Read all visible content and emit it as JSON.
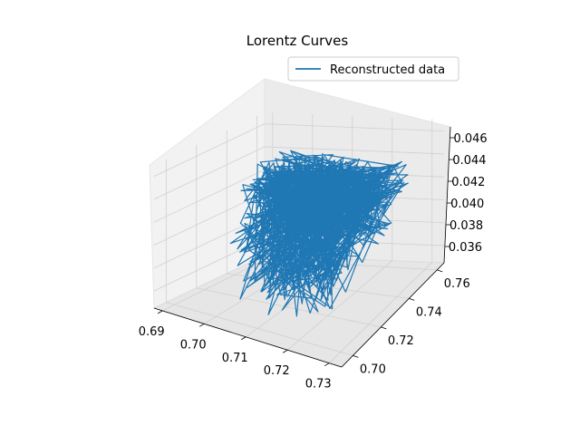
{
  "colors": {
    "line": "#1f77b4",
    "pane": "#f2f2f2",
    "grid": "#d0d0d0",
    "axis": "#000000"
  },
  "chart_data": {
    "type": "line",
    "projection": "3d",
    "title": "Lorentz Curves",
    "legend": {
      "label": "Reconstructed data",
      "position": "top-right"
    },
    "xlim": [
      0.688,
      0.733
    ],
    "ylim": [
      0.692,
      0.765
    ],
    "zlim": [
      0.0345,
      0.047
    ],
    "x_ticks": [
      "0.69",
      "0.70",
      "0.71",
      "0.72",
      "0.73"
    ],
    "y_ticks": [
      "0.70",
      "0.72",
      "0.74",
      "0.76"
    ],
    "z_ticks": [
      "0.036",
      "0.038",
      "0.040",
      "0.042",
      "0.044",
      "0.046"
    ],
    "series": [
      {
        "name": "Reconstructed data",
        "generator": "dense tangle of line segments",
        "segments": 900,
        "x_range": [
          0.695,
          0.728
        ],
        "y_range": [
          0.7,
          0.76
        ],
        "z_range": [
          0.0355,
          0.0445
        ]
      }
    ]
  }
}
